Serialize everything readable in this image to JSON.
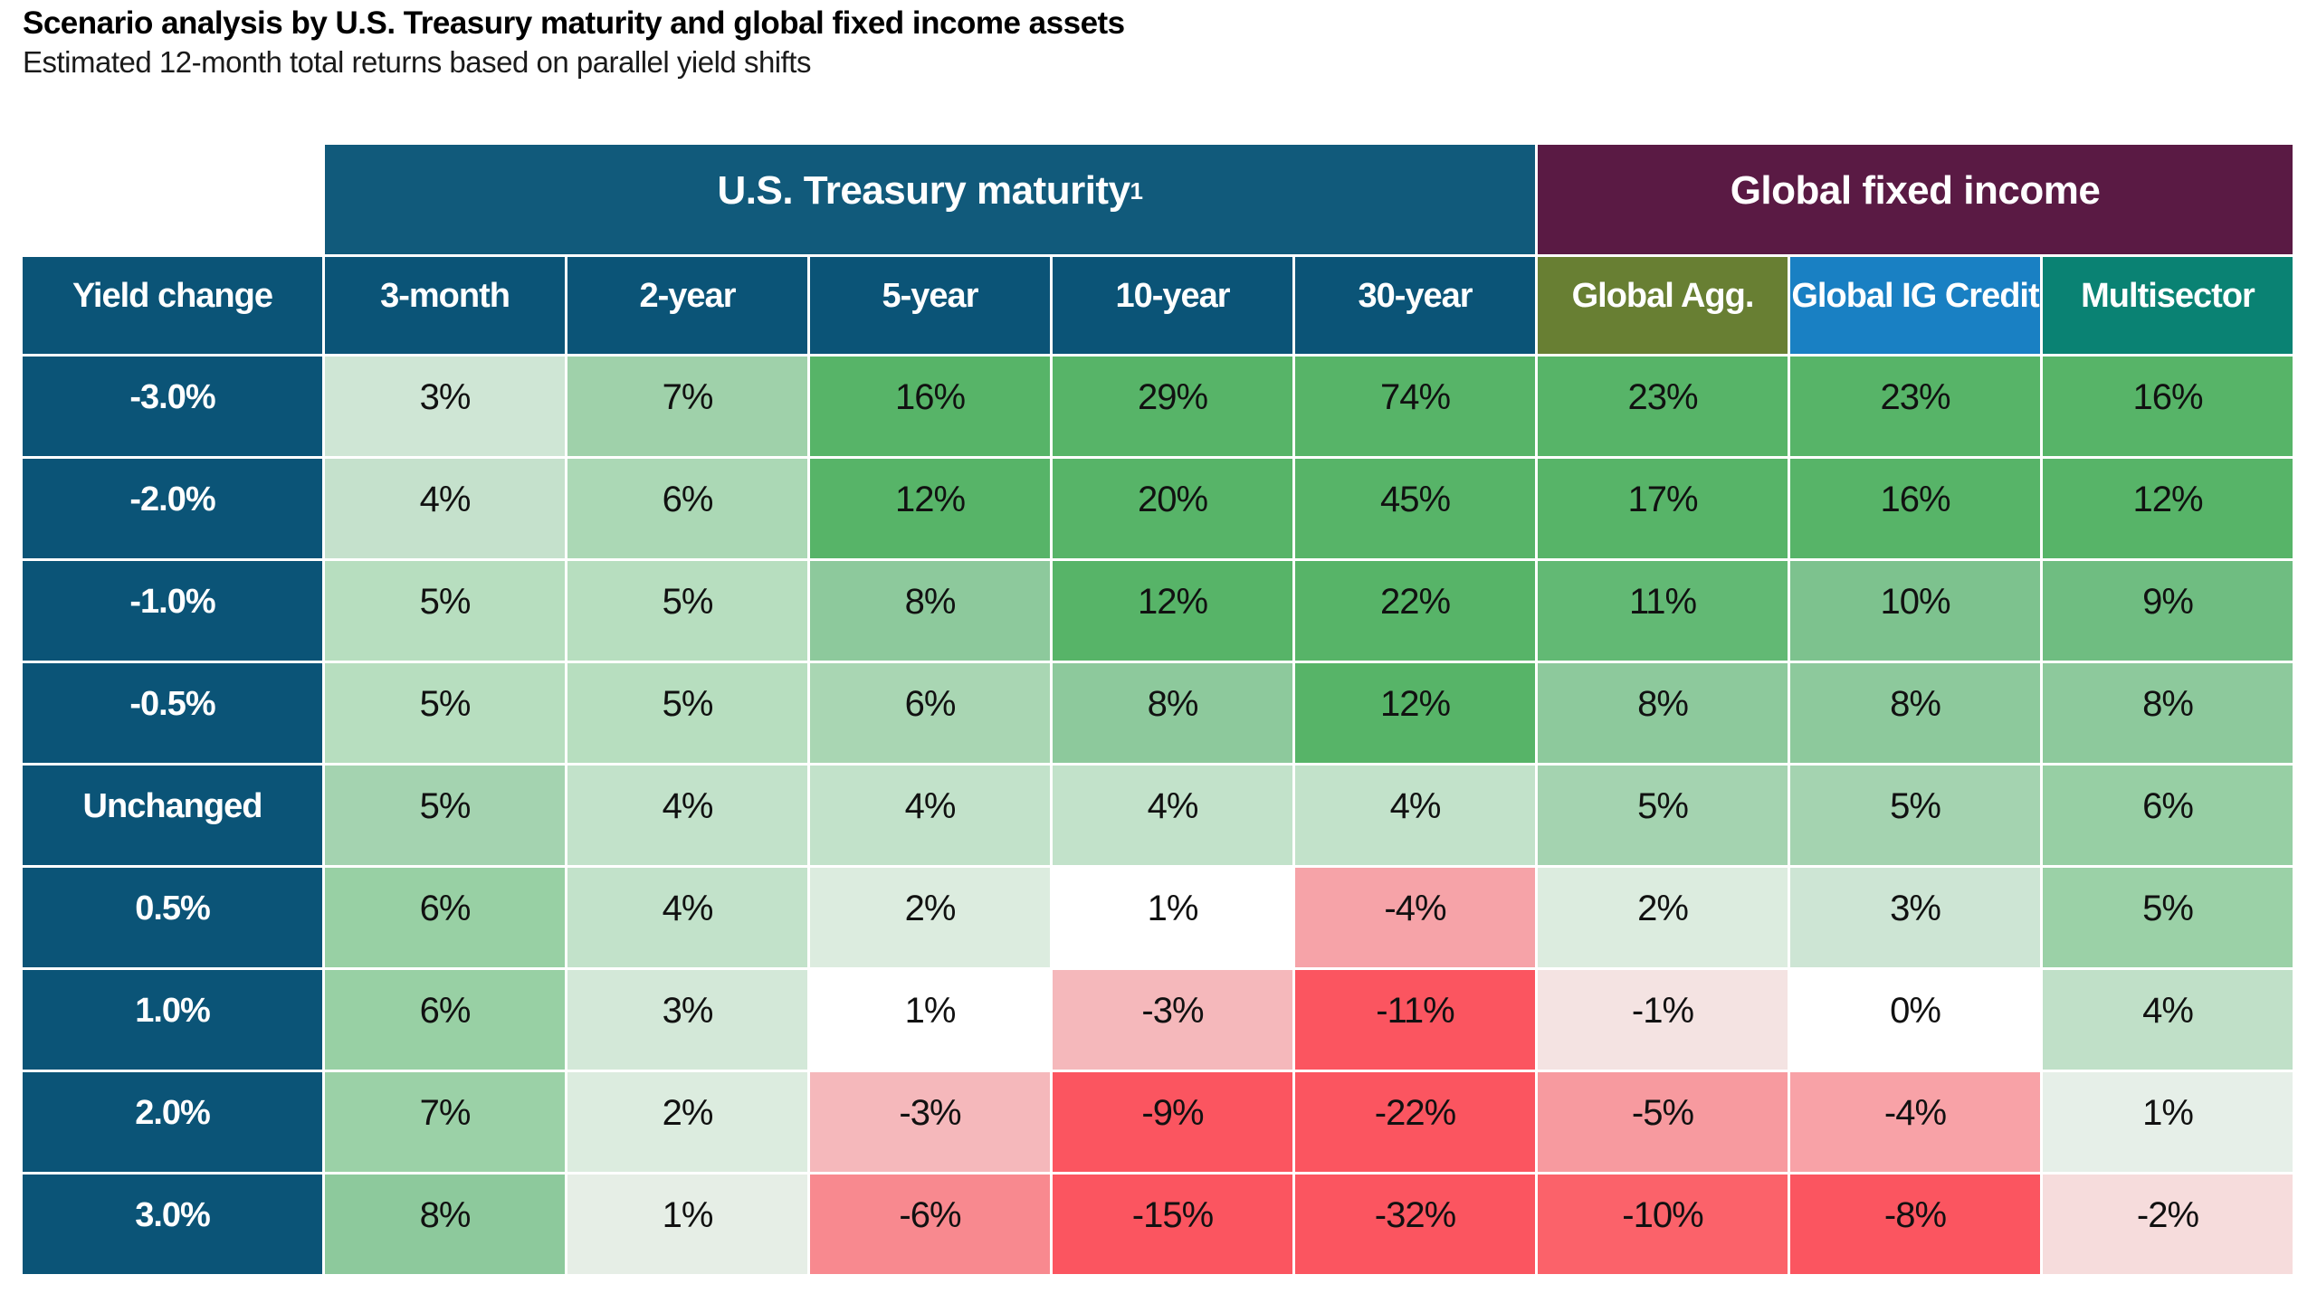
{
  "page": {
    "title": "Scenario analysis by U.S. Treasury maturity and global fixed income assets",
    "subtitle": "Estimated 12-month total returns based on parallel yield shifts",
    "background": "#ffffff"
  },
  "table": {
    "corner_label": "Yield change",
    "corner_bg": "#0b5477",
    "row_header_bg": "#0b5477",
    "header_text_color": "#ffffff",
    "cell_text_color": "#111111",
    "grid_line_color": "#ffffff",
    "group_headers": [
      {
        "label": "U.S. Treasury maturity",
        "superscript": "1",
        "bg": "#115a7b",
        "span": 5
      },
      {
        "label": "Global fixed income",
        "superscript": "",
        "bg": "#5a1a44",
        "span": 3
      }
    ],
    "column_headers": [
      {
        "label": "3-month",
        "bg": "#0b5477"
      },
      {
        "label": "2-year",
        "bg": "#0b5477"
      },
      {
        "label": "5-year",
        "bg": "#0b5477"
      },
      {
        "label": "10-year",
        "bg": "#0b5477"
      },
      {
        "label": "30-year",
        "bg": "#0b5477"
      },
      {
        "label": "Global Agg.",
        "bg": "#687f33"
      },
      {
        "label": "Global IG Credit",
        "bg": "#1980c3"
      },
      {
        "label": "Multisector",
        "bg": "#0a8273"
      }
    ]
  },
  "chart_data": {
    "type": "heatmap",
    "title": "Scenario analysis by U.S. Treasury maturity and global fixed income assets",
    "subtitle": "Estimated 12-month total returns based on parallel yield shifts",
    "unit": "%",
    "column_groups": [
      {
        "label": "U.S. Treasury maturity",
        "footnote_marker": "1",
        "columns": [
          "3-month",
          "2-year",
          "5-year",
          "10-year",
          "30-year"
        ]
      },
      {
        "label": "Global fixed income",
        "footnote_marker": "",
        "columns": [
          "Global Agg.",
          "Global IG Credit",
          "Multisector"
        ]
      }
    ],
    "x_categories": [
      "3-month",
      "2-year",
      "5-year",
      "10-year",
      "30-year",
      "Global Agg.",
      "Global IG Credit",
      "Multisector"
    ],
    "y_axis_label": "Yield change",
    "y_categories": [
      "-3.0%",
      "-2.0%",
      "-1.0%",
      "-0.5%",
      "Unchanged",
      "0.5%",
      "1.0%",
      "2.0%",
      "3.0%"
    ],
    "values_pct": [
      [
        3,
        7,
        16,
        29,
        74,
        23,
        23,
        16
      ],
      [
        4,
        6,
        12,
        20,
        45,
        17,
        16,
        12
      ],
      [
        5,
        5,
        8,
        12,
        22,
        11,
        10,
        9
      ],
      [
        5,
        5,
        6,
        8,
        12,
        8,
        8,
        8
      ],
      [
        5,
        4,
        4,
        4,
        4,
        5,
        5,
        6
      ],
      [
        6,
        4,
        2,
        1,
        -4,
        2,
        3,
        5
      ],
      [
        6,
        3,
        1,
        -3,
        -11,
        -1,
        0,
        4
      ],
      [
        7,
        2,
        -3,
        -9,
        -22,
        -5,
        -4,
        1
      ],
      [
        8,
        1,
        -6,
        -15,
        -32,
        -10,
        -8,
        -2
      ]
    ],
    "cell_colors": [
      [
        "#cfe6d5",
        "#9fd1aa",
        "#57b468",
        "#57b468",
        "#57b468",
        "#57b468",
        "#57b468",
        "#57b468"
      ],
      [
        "#c5e1cc",
        "#abd8b5",
        "#57b468",
        "#57b468",
        "#57b468",
        "#57b468",
        "#57b468",
        "#57b468"
      ],
      [
        "#b7debf",
        "#b7debf",
        "#8dc99c",
        "#57b468",
        "#57b468",
        "#62b974",
        "#7dc28e",
        "#6fbd81"
      ],
      [
        "#b7debf",
        "#b7debf",
        "#a9d6b3",
        "#8dc99c",
        "#57b468",
        "#8dc99c",
        "#8dc99c",
        "#8dc99c"
      ],
      [
        "#a4d3b0",
        "#c2e2ca",
        "#c2e2ca",
        "#c2e2ca",
        "#c2e2ca",
        "#a4d3b0",
        "#a4d3b0",
        "#97cfa4"
      ],
      [
        "#98d0a4",
        "#c2e2ca",
        "#dcecdf",
        "#ffffff",
        "#f6a3a8",
        "#dcecdf",
        "#cde5d4",
        "#9bd1a7"
      ],
      [
        "#98d0a4",
        "#d3e8d8",
        "#ffffff",
        "#f5b8bb",
        "#fb5560",
        "#f4e3e2",
        "#ffffff",
        "#c0e0c8"
      ],
      [
        "#9bd1a7",
        "#dcecdf",
        "#f5b8bb",
        "#fb5560",
        "#fb5560",
        "#f79a9f",
        "#f8a2a7",
        "#e6efe8"
      ],
      [
        "#8dc99c",
        "#e6eee6",
        "#f8898f",
        "#fb5560",
        "#fb5560",
        "#fb626a",
        "#fb5560",
        "#f6dcdc"
      ]
    ],
    "color_scale": {
      "positive_full": "#57b468",
      "negative_full": "#fb5560",
      "zero": "#ffffff",
      "positive_clamp_pct": 12,
      "negative_clamp_pct": 8
    },
    "legend": "off",
    "grid": "white 3px gaps between cells"
  }
}
